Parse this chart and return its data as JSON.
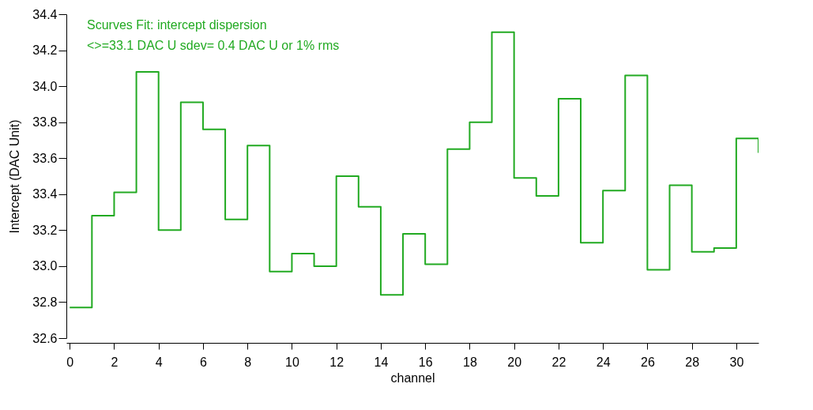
{
  "chart_data": {
    "type": "step",
    "xlabel": "channel",
    "ylabel": "Intercept (DAC Unit)",
    "annotations": [
      "Scurves Fit: intercept dispersion",
      "<>=33.1 DAC U  sdev= 0.4 DAC U or 1% rms"
    ],
    "x": [
      0,
      1,
      2,
      3,
      4,
      5,
      6,
      7,
      8,
      9,
      10,
      11,
      12,
      13,
      14,
      15,
      16,
      17,
      18,
      19,
      20,
      21,
      22,
      23,
      24,
      25,
      26,
      27,
      28,
      29,
      30,
      31
    ],
    "series": [
      {
        "color": "#22aa22",
        "values": [
          32.77,
          33.28,
          33.41,
          34.08,
          33.2,
          33.91,
          33.76,
          33.26,
          33.67,
          32.97,
          33.07,
          33.0,
          33.5,
          33.33,
          32.84,
          33.18,
          33.01,
          33.65,
          33.8,
          34.3,
          33.49,
          33.39,
          33.93,
          33.13,
          33.42,
          34.06,
          32.98,
          33.45,
          33.08,
          33.1,
          33.71,
          33.63
        ]
      }
    ],
    "xlim": [
      -0.15,
      31
    ],
    "ylim": [
      32.6,
      34.4
    ],
    "xticks": [
      0,
      2,
      4,
      6,
      8,
      10,
      12,
      14,
      16,
      18,
      20,
      22,
      24,
      26,
      28,
      30
    ],
    "yticks": [
      32.6,
      32.8,
      {
        "value": 33,
        "label": "33.0"
      },
      33.2,
      33.4,
      33.6,
      33.8,
      {
        "value": 34,
        "label": "34.0"
      },
      34.2,
      34.4
    ],
    "grid": false,
    "marker": "none",
    "line_style": "solid"
  }
}
